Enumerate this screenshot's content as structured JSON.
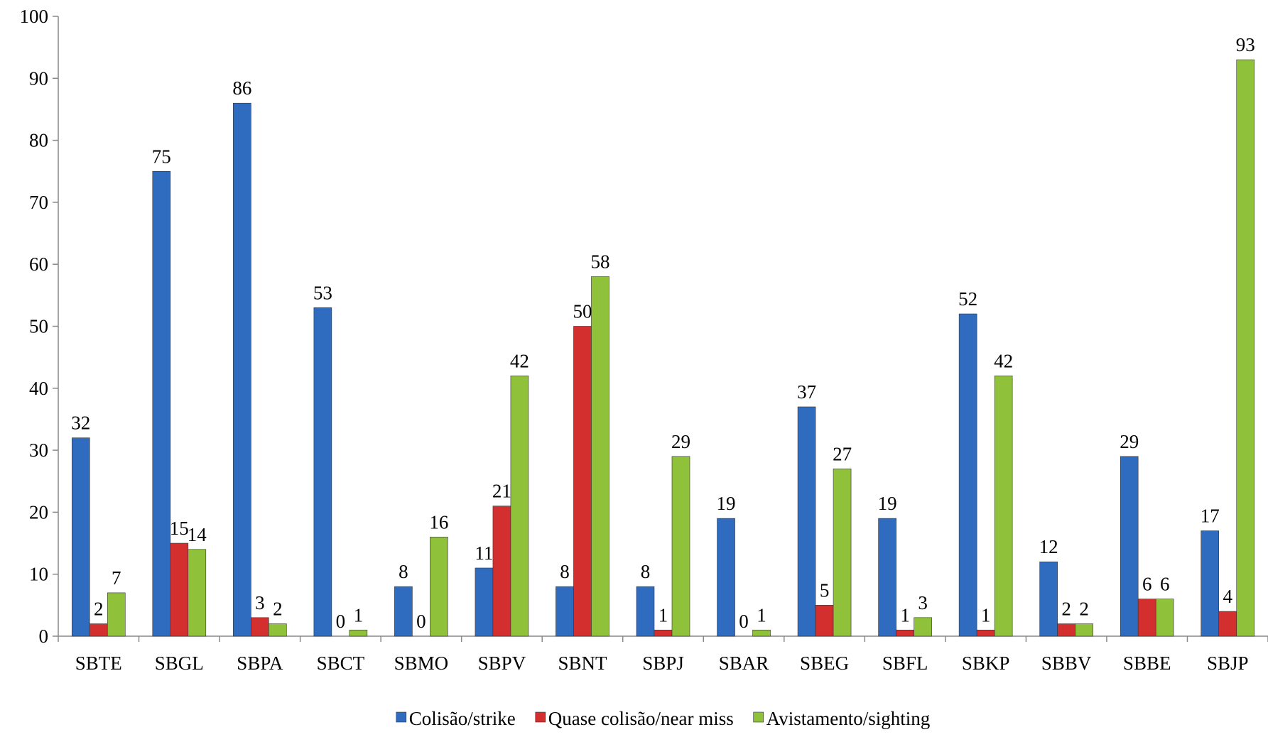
{
  "chart_data": {
    "type": "bar",
    "categories": [
      "SBTE",
      "SBGL",
      "SBPA",
      "SBCT",
      "SBMO",
      "SBPV",
      "SBNT",
      "SBPJ",
      "SBAR",
      "SBEG",
      "SBFL",
      "SBKP",
      "SBBV",
      "SBBE",
      "SBJP"
    ],
    "series": [
      {
        "name": "Colisão/strike",
        "color": "#2f6cc0",
        "values": [
          32,
          75,
          86,
          53,
          8,
          11,
          8,
          8,
          19,
          37,
          19,
          52,
          12,
          29,
          17
        ]
      },
      {
        "name": "Quase colisão/near miss",
        "color": "#d42f2f",
        "values": [
          2,
          15,
          3,
          0,
          0,
          21,
          50,
          1,
          0,
          5,
          1,
          1,
          2,
          6,
          4
        ]
      },
      {
        "name": "Avistamento/sighting",
        "color": "#8fc23a",
        "values": [
          7,
          14,
          2,
          1,
          16,
          42,
          58,
          29,
          1,
          27,
          3,
          42,
          2,
          6,
          93
        ]
      }
    ],
    "ylim": [
      0,
      100
    ],
    "yticks": [
      0,
      10,
      20,
      30,
      40,
      50,
      60,
      70,
      80,
      90,
      100
    ],
    "legend": "bottom"
  }
}
